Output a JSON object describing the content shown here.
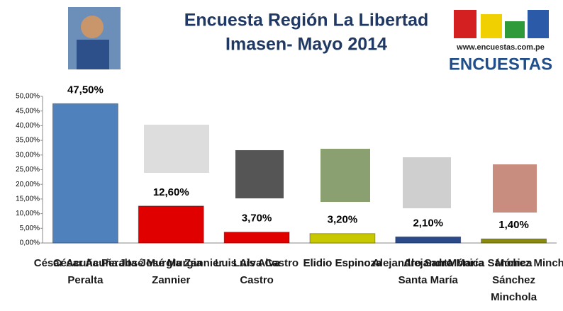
{
  "chart_data": {
    "type": "bar",
    "title": "Encuesta Región La Libertad",
    "subtitle": "Imasen- Mayo 2014",
    "logo": {
      "url": "www.encuestas.com.pe",
      "name": "ENCUESTAS"
    },
    "categories": [
      "César Acuña\nPeralta",
      "José Murgia\nZannier",
      "Luis Alva\nCastro",
      "Elidio Espinoza",
      "Alejandro\nSanta María",
      "Mónica\nSánchez\nMinchola"
    ],
    "values": [
      47.5,
      12.6,
      3.7,
      3.2,
      2.1,
      1.4
    ],
    "value_labels": [
      "47,50%",
      "12,60%",
      "3,70%",
      "3,20%",
      "2,10%",
      "1,40%"
    ],
    "colors": [
      "#4f81bd",
      "#e00000",
      "#e00000",
      "#c8c800",
      "#2a4a8a",
      "#8a8a10"
    ],
    "ylim": [
      0,
      50
    ],
    "yticks": [
      {
        "value": 0,
        "label": "0,00%"
      },
      {
        "value": 5,
        "label": "5,00%"
      },
      {
        "value": 10,
        "label": "10,00%"
      },
      {
        "value": 15,
        "label": "15,00%"
      },
      {
        "value": 20,
        "label": "20,00%"
      },
      {
        "value": 25,
        "label": "25,00%"
      },
      {
        "value": 30,
        "label": "30,00%"
      },
      {
        "value": 35,
        "label": "35,00%"
      },
      {
        "value": 40,
        "label": "40,00%"
      },
      {
        "value": 45,
        "label": "45,00%"
      },
      {
        "value": 50,
        "label": "50,00%"
      }
    ],
    "grid": false
  }
}
